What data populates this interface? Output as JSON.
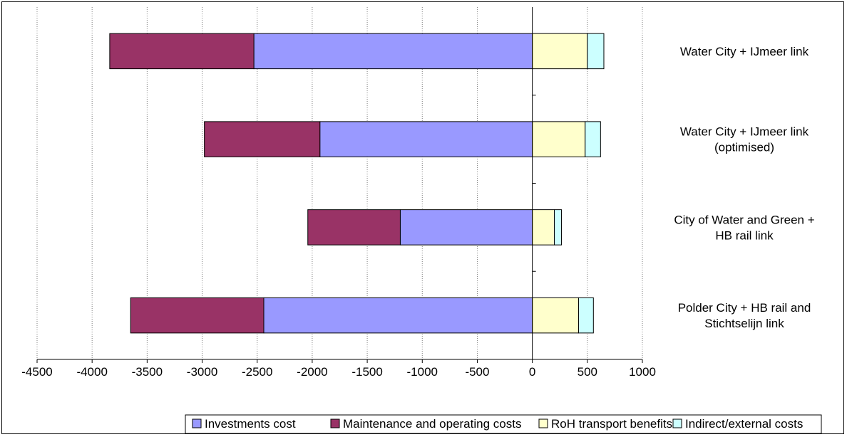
{
  "chart_data": {
    "type": "bar",
    "orientation": "horizontal",
    "stacked": true,
    "title": "",
    "xlabel": "",
    "ylabel": "",
    "xlim": [
      -4500,
      1000
    ],
    "x_ticks": [
      -4500,
      -4000,
      -3500,
      -3000,
      -2500,
      -2000,
      -1500,
      -1000,
      -500,
      0,
      500,
      1000
    ],
    "grid": {
      "vertical": true,
      "style": "dotted"
    },
    "legend_position": "bottom",
    "categories": [
      {
        "lines": [
          "Water City +  IJmeer link"
        ]
      },
      {
        "lines": [
          "Water City +  IJmeer link",
          "(optimised)"
        ]
      },
      {
        "lines": [
          "City of Water and Green +",
          "HB rail link"
        ]
      },
      {
        "lines": [
          "Polder City  + HB rail and",
          "Stichtselijn link"
        ]
      }
    ],
    "series": [
      {
        "name": "Investments cost",
        "color": "#9999ff",
        "values": [
          -2530,
          -1930,
          -1200,
          -2440
        ]
      },
      {
        "name": "Maintenance and operating costs",
        "color": "#993366",
        "values": [
          -1310,
          -1050,
          -840,
          -1210
        ]
      },
      {
        "name": "RoH transport benefits",
        "color": "#ffffcc",
        "values": [
          500,
          480,
          200,
          420
        ]
      },
      {
        "name": "Indirect/external costs",
        "color": "#ccffff",
        "values": [
          150,
          140,
          65,
          135
        ]
      }
    ]
  }
}
